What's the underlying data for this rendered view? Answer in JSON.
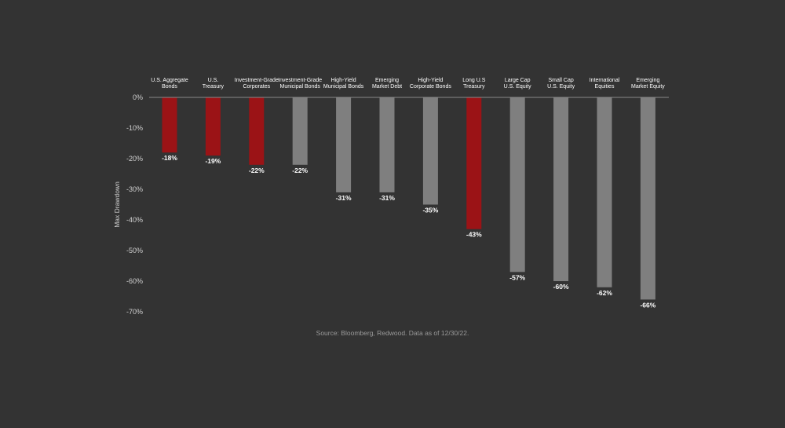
{
  "chart_data": {
    "type": "bar",
    "categories": [
      "U.S. Aggregate\nBonds",
      "U.S.\nTreasury",
      "Investment-Grade\nCorporates",
      "Investment-Grade\nMunicipal Bonds",
      "High-Yield\nMunicipal Bonds",
      "Emerging\nMarket Debt",
      "High-Yield\nCorporate Bonds",
      "Long U.S\nTreasury",
      "Large Cap\nU.S. Equity",
      "Small Cap\nU.S. Equity",
      "International\nEquities",
      "Emerging\nMarket Equity"
    ],
    "values": [
      -18,
      -19,
      -22,
      -22,
      -31,
      -31,
      -35,
      -43,
      -57,
      -60,
      -62,
      -66
    ],
    "data_labels": [
      "-18%",
      "-19%",
      "-22%",
      "-22%",
      "-31%",
      "-31%",
      "-35%",
      "-43%",
      "-57%",
      "-60%",
      "-62%",
      "-66%"
    ],
    "highlighted": [
      true,
      true,
      true,
      false,
      false,
      false,
      false,
      true,
      false,
      false,
      false,
      false
    ],
    "y_ticks": [
      0,
      -10,
      -20,
      -30,
      -40,
      -50,
      -60,
      -70
    ],
    "y_tick_labels": [
      "0%",
      "-10%",
      "-20%",
      "-30%",
      "-40%",
      "-50%",
      "-60%",
      "-70%"
    ],
    "ylabel": "Max Drawdown",
    "ylim": [
      -70,
      0
    ],
    "colors": {
      "highlight": "#9b1316",
      "normal": "#7f7f7f",
      "background": "#333333",
      "axis": "#8a8a8a",
      "text": "#ffffff",
      "tick_text": "#d0d0d0"
    }
  },
  "source_text": "Source: Bloomberg, Redwood. Data as of 12/30/22."
}
